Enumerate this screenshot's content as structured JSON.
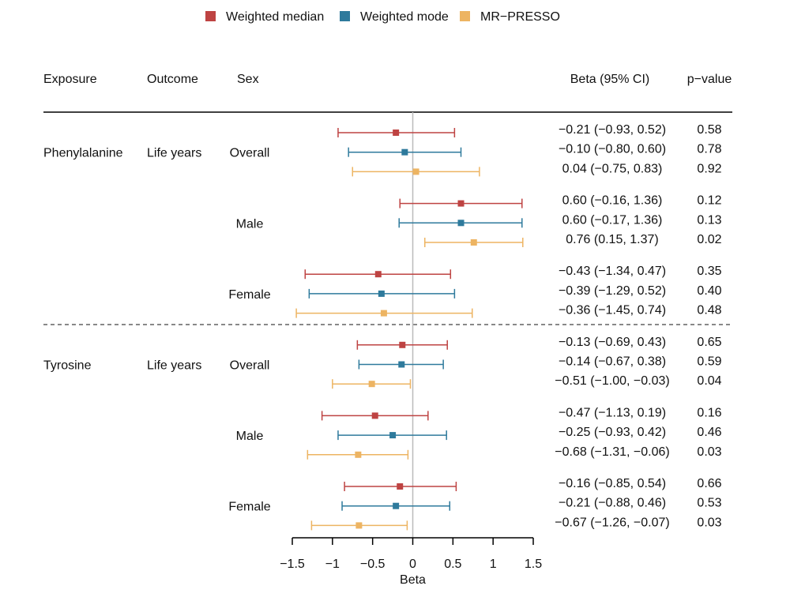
{
  "chart_data": {
    "type": "forest",
    "xlabel": "Beta",
    "xlim": [
      -1.5,
      1.5
    ],
    "xticks": [
      -1.5,
      -1,
      -0.5,
      0,
      0.5,
      1,
      1.5
    ],
    "xtick_labels": [
      "−1.5",
      "−1",
      "−0.5",
      "0",
      "0.5",
      "1",
      "1.5"
    ],
    "reference_line": 0,
    "legend_position": "top",
    "columns": {
      "exposure": "Exposure",
      "outcome": "Outcome",
      "sex": "Sex",
      "beta": "Beta (95% CI)",
      "p": "p−value"
    },
    "series": [
      {
        "name": "Weighted median",
        "color": "#BE4342"
      },
      {
        "name": "Weighted mode",
        "color": "#2E7A9C"
      },
      {
        "name": "MR−PRESSO",
        "color": "#EDB462"
      }
    ],
    "groups": [
      {
        "exposure": "Phenylalanine",
        "outcome": "Life years",
        "sex": "Overall",
        "rows": [
          {
            "beta": -0.21,
            "lo": -0.93,
            "hi": 0.52,
            "label": "−0.21 (−0.93, 0.52)",
            "p": "0.58"
          },
          {
            "beta": -0.1,
            "lo": -0.8,
            "hi": 0.6,
            "label": "−0.10 (−0.80, 0.60)",
            "p": "0.78"
          },
          {
            "beta": 0.04,
            "lo": -0.75,
            "hi": 0.83,
            "label": "0.04 (−0.75, 0.83)",
            "p": "0.92"
          }
        ]
      },
      {
        "exposure": "",
        "outcome": "",
        "sex": "Male",
        "rows": [
          {
            "beta": 0.6,
            "lo": -0.16,
            "hi": 1.36,
            "label": "0.60 (−0.16, 1.36)",
            "p": "0.12"
          },
          {
            "beta": 0.6,
            "lo": -0.17,
            "hi": 1.36,
            "label": "0.60 (−0.17, 1.36)",
            "p": "0.13"
          },
          {
            "beta": 0.76,
            "lo": 0.15,
            "hi": 1.37,
            "label": "0.76 (0.15, 1.37)",
            "p": "0.02"
          }
        ]
      },
      {
        "exposure": "",
        "outcome": "",
        "sex": "Female",
        "rows": [
          {
            "beta": -0.43,
            "lo": -1.34,
            "hi": 0.47,
            "label": "−0.43 (−1.34, 0.47)",
            "p": "0.35"
          },
          {
            "beta": -0.39,
            "lo": -1.29,
            "hi": 0.52,
            "label": "−0.39 (−1.29, 0.52)",
            "p": "0.40"
          },
          {
            "beta": -0.36,
            "lo": -1.45,
            "hi": 0.74,
            "label": "−0.36 (−1.45, 0.74)",
            "p": "0.48"
          }
        ]
      },
      {
        "exposure": "Tyrosine",
        "outcome": "Life years",
        "sex": "Overall",
        "rows": [
          {
            "beta": -0.13,
            "lo": -0.69,
            "hi": 0.43,
            "label": "−0.13 (−0.69, 0.43)",
            "p": "0.65"
          },
          {
            "beta": -0.14,
            "lo": -0.67,
            "hi": 0.38,
            "label": "−0.14 (−0.67, 0.38)",
            "p": "0.59"
          },
          {
            "beta": -0.51,
            "lo": -1.0,
            "hi": -0.03,
            "label": "−0.51 (−1.00, −0.03)",
            "p": "0.04"
          }
        ]
      },
      {
        "exposure": "",
        "outcome": "",
        "sex": "Male",
        "rows": [
          {
            "beta": -0.47,
            "lo": -1.13,
            "hi": 0.19,
            "label": "−0.47 (−1.13, 0.19)",
            "p": "0.16"
          },
          {
            "beta": -0.25,
            "lo": -0.93,
            "hi": 0.42,
            "label": "−0.25 (−0.93, 0.42)",
            "p": "0.46"
          },
          {
            "beta": -0.68,
            "lo": -1.31,
            "hi": -0.06,
            "label": "−0.68 (−1.31, −0.06)",
            "p": "0.03"
          }
        ]
      },
      {
        "exposure": "",
        "outcome": "",
        "sex": "Female",
        "rows": [
          {
            "beta": -0.16,
            "lo": -0.85,
            "hi": 0.54,
            "label": "−0.16 (−0.85, 0.54)",
            "p": "0.66"
          },
          {
            "beta": -0.21,
            "lo": -0.88,
            "hi": 0.46,
            "label": "−0.21 (−0.88, 0.46)",
            "p": "0.53"
          },
          {
            "beta": -0.67,
            "lo": -1.26,
            "hi": -0.07,
            "label": "−0.67 (−1.26, −0.07)",
            "p": "0.03"
          }
        ]
      }
    ]
  }
}
